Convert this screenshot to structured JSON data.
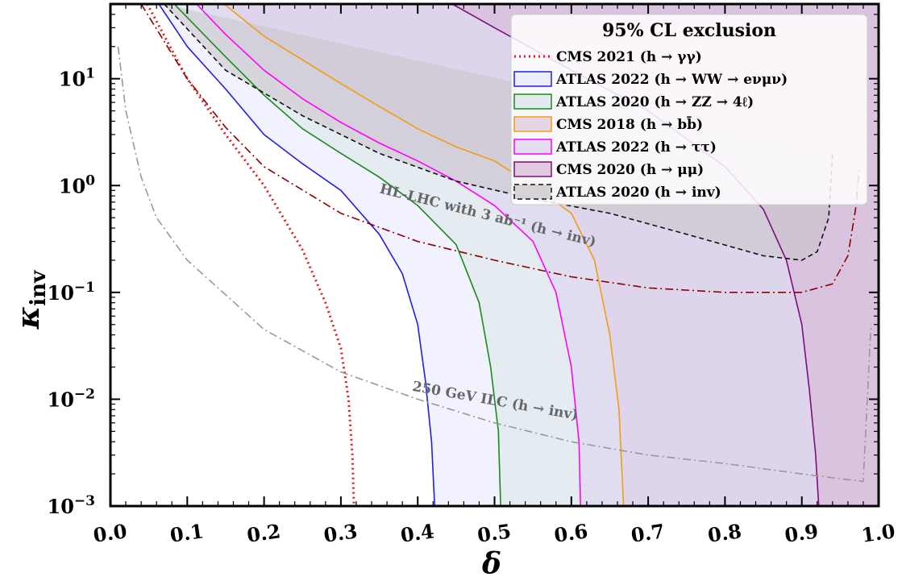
{
  "chart_data": {
    "type": "line",
    "xlabel": "δ",
    "ylabel": "κ",
    "ylabel_sub": "inv",
    "xlim": [
      0.0,
      1.0
    ],
    "ylim": [
      0.001,
      50
    ],
    "yscale": "log",
    "x_ticks": [
      "0.0",
      "0.1",
      "0.2",
      "0.3",
      "0.4",
      "0.5",
      "0.6",
      "0.7",
      "0.8",
      "0.9",
      "1.0"
    ],
    "y_ticks": [
      {
        "value": 0.001,
        "base": "10",
        "exp": "−3"
      },
      {
        "value": 0.01,
        "base": "10",
        "exp": "−2"
      },
      {
        "value": 0.1,
        "base": "10",
        "exp": "−1"
      },
      {
        "value": 1,
        "base": "10",
        "exp": "0"
      },
      {
        "value": 10,
        "base": "10",
        "exp": "1"
      }
    ],
    "legend": {
      "title": "95% CL exclusion",
      "placement": "top-right"
    },
    "series": [
      {
        "name": "CMS 2021 (h → γγ)",
        "color": "#e41a1c",
        "style": "dotted",
        "filled": false,
        "x": [
          0.048,
          0.1,
          0.15,
          0.2,
          0.25,
          0.28,
          0.3,
          0.31,
          0.315,
          0.317
        ],
        "y": [
          50,
          10,
          3.0,
          1.0,
          0.25,
          0.08,
          0.03,
          0.01,
          0.003,
          0.001
        ]
      },
      {
        "name": "ATLAS 2022 (h → WW → eνμν)",
        "color": "#1f1fe6",
        "style": "solid",
        "filled": true,
        "fill": "#e6e8fb",
        "x": [
          0.063,
          0.1,
          0.15,
          0.2,
          0.25,
          0.3,
          0.35,
          0.38,
          0.4,
          0.41,
          0.418,
          0.422
        ],
        "y": [
          50,
          20,
          8.0,
          3.0,
          1.6,
          0.9,
          0.35,
          0.15,
          0.05,
          0.015,
          0.004,
          0.001
        ]
      },
      {
        "name": "ATLAS 2020 (h → ZZ → 4ℓ)",
        "color": "#1a8a1a",
        "style": "solid",
        "filled": true,
        "fill": "#d9e6e8",
        "x": [
          0.083,
          0.15,
          0.2,
          0.25,
          0.3,
          0.35,
          0.4,
          0.45,
          0.48,
          0.495,
          0.505,
          0.508
        ],
        "y": [
          50,
          16,
          7.0,
          3.4,
          2.0,
          1.2,
          0.65,
          0.28,
          0.08,
          0.02,
          0.005,
          0.001
        ]
      },
      {
        "name": "CMS 2018 (h → bb̄)",
        "color": "#f39c12",
        "style": "solid",
        "filled": true,
        "fill": "#ddc8dd",
        "x": [
          0.148,
          0.2,
          0.25,
          0.3,
          0.35,
          0.4,
          0.45,
          0.5,
          0.55,
          0.6,
          0.63,
          0.65,
          0.662,
          0.668
        ],
        "y": [
          50,
          25,
          15,
          9.0,
          5.5,
          3.4,
          2.3,
          1.7,
          1.0,
          0.55,
          0.2,
          0.04,
          0.008,
          0.001
        ]
      },
      {
        "name": "ATLAS 2022 (h → ττ)",
        "color": "#ff00ff",
        "style": "solid",
        "filled": true,
        "fill": "#dcd2f0",
        "x": [
          0.112,
          0.15,
          0.2,
          0.25,
          0.3,
          0.35,
          0.4,
          0.45,
          0.5,
          0.55,
          0.58,
          0.6,
          0.61,
          0.612
        ],
        "y": [
          50,
          26,
          12,
          6.5,
          3.9,
          2.5,
          1.7,
          1.1,
          0.65,
          0.3,
          0.1,
          0.02,
          0.004,
          0.001
        ]
      },
      {
        "name": "CMS 2020 (h → μμ)",
        "color": "#7b0e7b",
        "style": "solid",
        "filled": true,
        "fill": "#d7b5d4",
        "x": [
          0.445,
          0.5,
          0.6,
          0.7,
          0.8,
          0.85,
          0.88,
          0.9,
          0.91,
          0.918,
          0.922
        ],
        "y": [
          50,
          30,
          12,
          5.0,
          1.5,
          0.6,
          0.2,
          0.05,
          0.012,
          0.003,
          0.001
        ]
      },
      {
        "name": "ATLAS 2020 (h → inv)",
        "color": "#111111",
        "style": "dashed",
        "filled": true,
        "fill": "#c8c2c8",
        "x": [
          0.07,
          0.15,
          0.25,
          0.35,
          0.45,
          0.55,
          0.65,
          0.75,
          0.85,
          0.9,
          0.92,
          0.935,
          0.94
        ],
        "y": [
          50,
          12,
          4.5,
          2.0,
          1.1,
          0.75,
          0.55,
          0.35,
          0.22,
          0.2,
          0.24,
          0.5,
          2.0
        ]
      },
      {
        "name": "HL-LHC with 3 ab⁻¹ (h → inv)",
        "color": "#8b0000",
        "style": "dashdot",
        "filled": false,
        "x": [
          0.04,
          0.1,
          0.15,
          0.2,
          0.3,
          0.4,
          0.5,
          0.6,
          0.7,
          0.8,
          0.9,
          0.94,
          0.96,
          0.97,
          0.975
        ],
        "y": [
          50,
          10,
          3.5,
          1.5,
          0.55,
          0.3,
          0.2,
          0.14,
          0.11,
          0.1,
          0.1,
          0.12,
          0.22,
          0.6,
          1.5
        ]
      },
      {
        "name": "250 GeV ILC (h → inv)",
        "color": "#999999",
        "style": "dashdot",
        "filled": false,
        "x": [
          0.01,
          0.02,
          0.04,
          0.06,
          0.1,
          0.2,
          0.3,
          0.4,
          0.5,
          0.6,
          0.7,
          0.8,
          0.9,
          0.95,
          0.98,
          0.99
        ],
        "y": [
          20,
          5.0,
          1.2,
          0.5,
          0.2,
          0.045,
          0.018,
          0.01,
          0.006,
          0.004,
          0.003,
          0.0025,
          0.002,
          0.0018,
          0.0017,
          0.05
        ]
      }
    ],
    "annotations": [
      {
        "text": "HL-LHC with 3 ab⁻¹ (h → inv)",
        "x": 0.49,
        "y": 0.48,
        "angle": 14
      },
      {
        "text": "250 GeV ILC (h → inv)",
        "x": 0.5,
        "y": 0.0088,
        "angle": 10
      }
    ]
  }
}
